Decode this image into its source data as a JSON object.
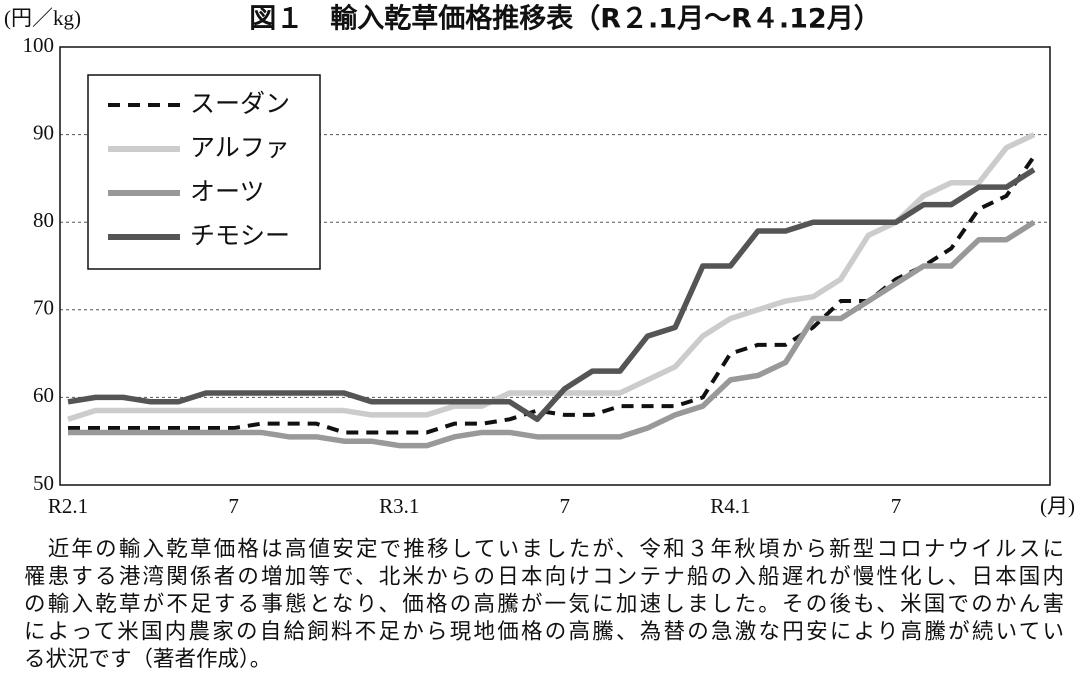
{
  "chart_data": {
    "type": "line",
    "title": "図１　輸入乾草価格推移表（R２.1月～R４.12月）",
    "y_label": "(円／kg)",
    "x_label": "(月)",
    "categories": [
      "R2.1",
      null,
      null,
      null,
      null,
      null,
      "7",
      null,
      null,
      null,
      null,
      null,
      "R3.1",
      null,
      null,
      null,
      null,
      null,
      "7",
      null,
      null,
      null,
      null,
      null,
      "R4.1",
      null,
      null,
      null,
      null,
      null,
      "7",
      null,
      null,
      null,
      null,
      null
    ],
    "series": [
      {
        "name": "スーダン",
        "color": "#111111",
        "style": "dashed",
        "values": [
          56.5,
          56.5,
          56.5,
          56.5,
          56.5,
          56.5,
          56.5,
          57,
          57,
          57,
          56,
          56,
          56,
          56,
          57,
          57,
          57.5,
          58.5,
          58,
          58,
          59,
          59,
          59,
          60,
          65,
          66,
          66,
          68,
          71,
          71,
          73.5,
          75,
          77,
          81.5,
          83,
          87.5
        ]
      },
      {
        "name": "アルファ",
        "color": "#cccccc",
        "style": "solid",
        "values": [
          57.5,
          58.5,
          58.5,
          58.5,
          58.5,
          58.5,
          58.5,
          58.5,
          58.5,
          58.5,
          58.5,
          58,
          58,
          58,
          59,
          59,
          60.5,
          60.5,
          60.5,
          60.5,
          60.5,
          62,
          63.5,
          67,
          69,
          70,
          71,
          71.5,
          73.5,
          78.5,
          80,
          83,
          84.5,
          84.5,
          88.5,
          90
        ]
      },
      {
        "name": "オーツ",
        "color": "#999999",
        "style": "solid",
        "values": [
          56,
          56,
          56,
          56,
          56,
          56,
          56,
          56,
          55.5,
          55.5,
          55,
          55,
          54.5,
          54.5,
          55.5,
          56,
          56,
          55.5,
          55.5,
          55.5,
          55.5,
          56.5,
          58,
          59,
          62,
          62.5,
          64,
          69,
          69,
          71,
          73,
          75,
          75,
          78,
          78,
          80
        ]
      },
      {
        "name": "チモシー",
        "color": "#555555",
        "style": "solid",
        "values": [
          59.5,
          60,
          60,
          59.5,
          59.5,
          60.5,
          60.5,
          60.5,
          60.5,
          60.5,
          60.5,
          59.5,
          59.5,
          59.5,
          59.5,
          59.5,
          59.5,
          57.5,
          61,
          63,
          63,
          67,
          68,
          75,
          75,
          79,
          79,
          80,
          80,
          80,
          80,
          82,
          82,
          84,
          84,
          86
        ]
      }
    ],
    "ylim": [
      50,
      100
    ],
    "yticks": [
      50,
      60,
      70,
      80,
      90,
      100
    ],
    "grid": true,
    "legend": "upper left"
  },
  "caption": [
    "　近年の輸入乾草価格は高値安定で推移していましたが、令和３年秋頃から新型コロナウイルスに",
    "罹患する港湾関係者の増加等で、北米からの日本向けコンテナ船の入船遅れが慢性化し、日本国内",
    "の輸入乾草が不足する事態となり、価格の高騰が一気に加速しました。その後も、米国でのかん害",
    "によって米国内農家の自給飼料不足から現地価格の高騰、為替の急激な円安により高騰が続いてい",
    "る状況です（著者作成）。"
  ]
}
